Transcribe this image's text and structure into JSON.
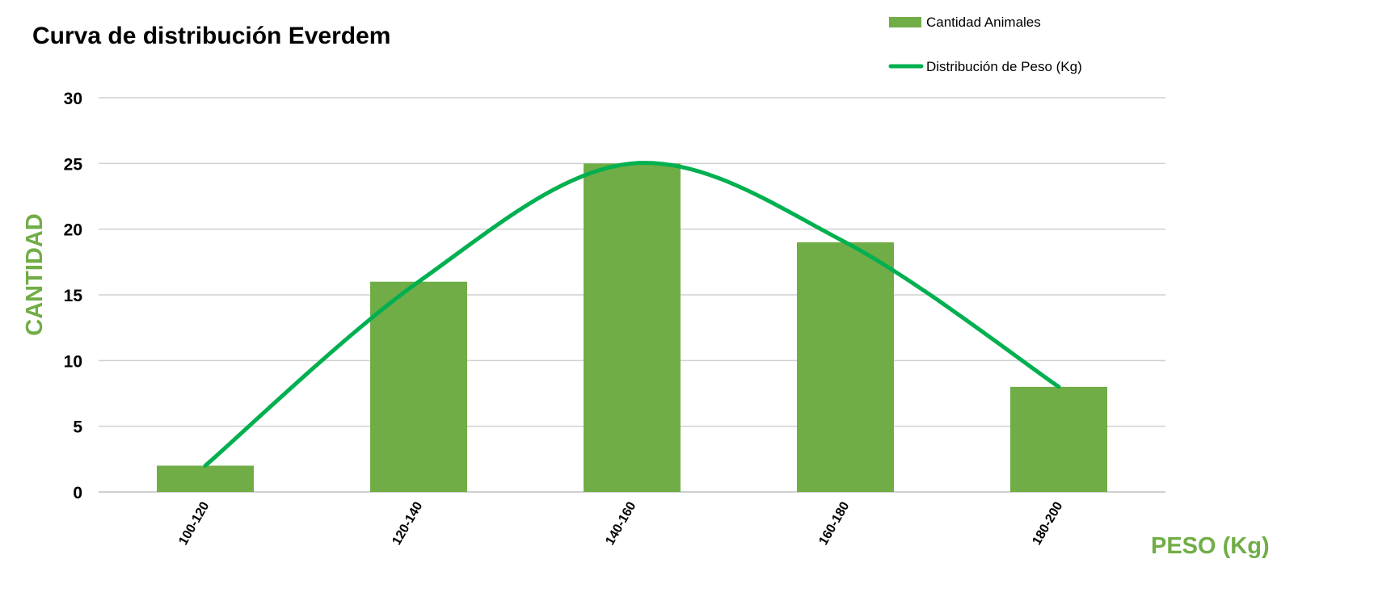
{
  "chart_data": {
    "type": "bar",
    "title": "Curva de distribución Everdem",
    "xlabel": "PESO (Kg)",
    "ylabel": "CANTIDAD",
    "categories": [
      "100-120",
      "120-140",
      "140-160",
      "160-180",
      "180-200"
    ],
    "series": [
      {
        "name": "Cantidad Animales",
        "type": "bar",
        "values": [
          2,
          16,
          25,
          19,
          8
        ],
        "color": "#70ad47"
      },
      {
        "name": "Distribución de Peso (Kg)",
        "type": "line",
        "smooth": true,
        "values": [
          2,
          16,
          25,
          19,
          8
        ],
        "color": "#00b050"
      }
    ],
    "ylim": [
      0,
      30
    ],
    "yticks": [
      0,
      5,
      10,
      15,
      20,
      25,
      30
    ],
    "grid": true,
    "legend": "top-right",
    "axis_title_color": "#70ad47"
  }
}
